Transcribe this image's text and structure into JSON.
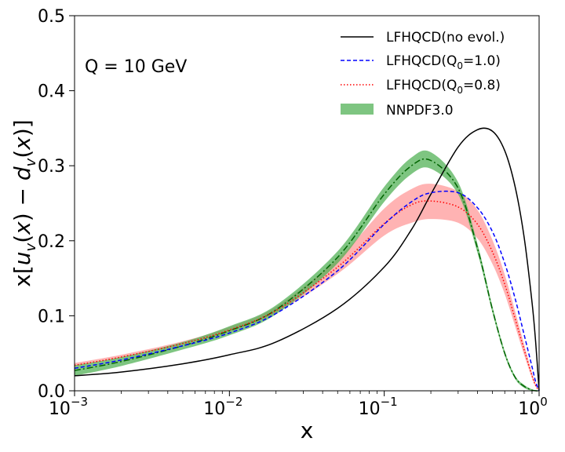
{
  "chart_data": {
    "type": "line",
    "annotation": "Q = 10 GeV",
    "xlabel": "x",
    "ylabel": "x[u_v(x) - d_v(x)]",
    "x_scale": "log",
    "xlim": [
      0.001,
      1
    ],
    "ylim": [
      0.0,
      0.5
    ],
    "x_ticks": [
      {
        "value": 0.001,
        "base": "10",
        "exp": "−3"
      },
      {
        "value": 0.01,
        "base": "10",
        "exp": "−2"
      },
      {
        "value": 0.1,
        "base": "10",
        "exp": "−1"
      },
      {
        "value": 1,
        "base": "10",
        "exp": "0"
      }
    ],
    "y_ticks": [
      {
        "value": 0.0,
        "label": "0.0"
      },
      {
        "value": 0.1,
        "label": "0.1"
      },
      {
        "value": 0.2,
        "label": "0.2"
      },
      {
        "value": 0.3,
        "label": "0.3"
      },
      {
        "value": 0.4,
        "label": "0.4"
      },
      {
        "value": 0.5,
        "label": "0.5"
      }
    ],
    "legend": {
      "placement": "top-right",
      "entries": [
        {
          "id": "noevol",
          "label": "LFHQCD(no evol.)"
        },
        {
          "id": "q10",
          "label_main": "LFHQCD(Q",
          "label_sub": "0",
          "label_tail": "=1.0)"
        },
        {
          "id": "q08",
          "label_main": "LFHQCD(Q",
          "label_sub": "0",
          "label_tail": "=0.8)"
        },
        {
          "id": "nnpdf",
          "label": "NNPDF3.0"
        }
      ]
    },
    "x": [
      0.001,
      0.002,
      0.005,
      0.01,
      0.02,
      0.05,
      0.1,
      0.15,
      0.2,
      0.3,
      0.4,
      0.5,
      0.6,
      0.7,
      0.8,
      0.9,
      0.95,
      1.0
    ],
    "series": [
      {
        "id": "noevol",
        "name": "LFHQCD(no evol.)",
        "color": "#000000",
        "dash": "solid",
        "values": [
          0.02,
          0.025,
          0.036,
          0.048,
          0.065,
          0.11,
          0.165,
          0.215,
          0.262,
          0.325,
          0.348,
          0.346,
          0.32,
          0.272,
          0.205,
          0.118,
          0.065,
          0.0
        ]
      },
      {
        "id": "q10",
        "name": "LFHQCD(Q0=1.0)",
        "color": "#0000ff",
        "dash": "dashed",
        "values": [
          0.03,
          0.041,
          0.06,
          0.077,
          0.103,
          0.16,
          0.222,
          0.252,
          0.264,
          0.264,
          0.244,
          0.212,
          0.17,
          0.123,
          0.075,
          0.032,
          0.012,
          0.0
        ]
      },
      {
        "id": "q08",
        "name": "LFHQCD(Q0=0.8)",
        "color": "#ff0000",
        "dash": "dotted",
        "values": [
          0.034,
          0.045,
          0.063,
          0.081,
          0.107,
          0.165,
          0.223,
          0.248,
          0.253,
          0.245,
          0.222,
          0.185,
          0.142,
          0.096,
          0.055,
          0.02,
          0.007,
          0.0
        ]
      },
      {
        "id": "nnpdf_central",
        "name": "NNPDF3.0 central",
        "color": "#006400",
        "dash": "dashdot",
        "values": [
          0.027,
          0.039,
          0.06,
          0.08,
          0.108,
          0.178,
          0.262,
          0.3,
          0.307,
          0.27,
          0.19,
          0.108,
          0.05,
          0.018,
          0.006,
          0.001,
          0.0,
          0.0
        ]
      }
    ],
    "bands": [
      {
        "id": "nnpdf",
        "name": "NNPDF3.0",
        "color": "#4caf50",
        "opacity": 0.72,
        "lower": [
          0.02,
          0.033,
          0.055,
          0.074,
          0.102,
          0.17,
          0.252,
          0.289,
          0.296,
          0.262,
          0.184,
          0.104,
          0.047,
          0.016,
          0.004,
          0.0,
          0.0,
          0.0
        ],
        "upper": [
          0.034,
          0.045,
          0.065,
          0.086,
          0.114,
          0.186,
          0.272,
          0.311,
          0.318,
          0.278,
          0.196,
          0.112,
          0.053,
          0.02,
          0.008,
          0.002,
          0.001,
          0.0
        ]
      },
      {
        "id": "red_band",
        "name": "",
        "color": "#ff9999",
        "opacity": 0.75,
        "lower": [
          0.033,
          0.044,
          0.062,
          0.079,
          0.104,
          0.156,
          0.207,
          0.224,
          0.229,
          0.224,
          0.203,
          0.169,
          0.129,
          0.086,
          0.048,
          0.017,
          0.006,
          0.0
        ],
        "upper": [
          0.037,
          0.048,
          0.066,
          0.085,
          0.112,
          0.176,
          0.243,
          0.269,
          0.276,
          0.266,
          0.241,
          0.201,
          0.155,
          0.106,
          0.062,
          0.024,
          0.009,
          0.0
        ]
      }
    ]
  }
}
